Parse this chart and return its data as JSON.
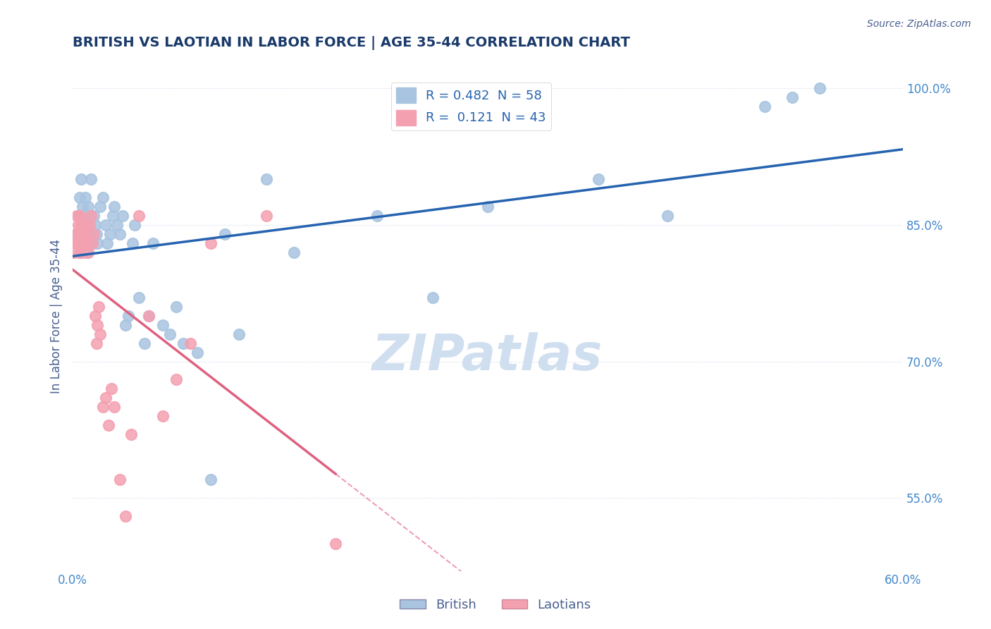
{
  "title": "BRITISH VS LAOTIAN IN LABOR FORCE | AGE 35-44 CORRELATION CHART",
  "source": "Source: ZipAtlas.com",
  "ylabel": "In Labor Force | Age 35-44",
  "xlabel": "",
  "xlim": [
    0.0,
    0.6
  ],
  "ylim": [
    0.47,
    1.03
  ],
  "yticks": [
    0.55,
    0.7,
    0.85,
    1.0
  ],
  "ytick_labels": [
    "55.0%",
    "70.0%",
    "85.0%",
    "100.0%"
  ],
  "xticks": [
    0.0,
    0.6
  ],
  "xtick_labels": [
    "0.0%",
    "60.0%"
  ],
  "british_R": 0.482,
  "british_N": 58,
  "laotian_R": 0.121,
  "laotian_N": 43,
  "british_color": "#a8c4e0",
  "laotian_color": "#f4a0b0",
  "british_line_color": "#2563b0",
  "laotian_line_color": "#e06080",
  "trend_line_color": "#b0b8d0",
  "background_color": "#ffffff",
  "grid_color": "#d0d8e8",
  "title_color": "#1a3a6b",
  "axis_label_color": "#4a6090",
  "tick_color": "#4488cc",
  "watermark_color": "#d0dff0",
  "british_x": [
    0.003,
    0.004,
    0.005,
    0.005,
    0.006,
    0.006,
    0.007,
    0.007,
    0.008,
    0.008,
    0.009,
    0.009,
    0.01,
    0.01,
    0.011,
    0.012,
    0.013,
    0.014,
    0.015,
    0.016,
    0.017,
    0.018,
    0.02,
    0.022,
    0.024,
    0.025,
    0.027,
    0.029,
    0.03,
    0.032,
    0.034,
    0.036,
    0.038,
    0.04,
    0.043,
    0.045,
    0.048,
    0.052,
    0.055,
    0.058,
    0.065,
    0.07,
    0.075,
    0.08,
    0.09,
    0.1,
    0.11,
    0.12,
    0.14,
    0.16,
    0.22,
    0.26,
    0.3,
    0.38,
    0.43,
    0.5,
    0.52,
    0.54
  ],
  "british_y": [
    0.84,
    0.86,
    0.88,
    0.82,
    0.9,
    0.83,
    0.85,
    0.87,
    0.84,
    0.86,
    0.83,
    0.88,
    0.85,
    0.82,
    0.87,
    0.84,
    0.9,
    0.83,
    0.86,
    0.85,
    0.84,
    0.83,
    0.87,
    0.88,
    0.85,
    0.83,
    0.84,
    0.86,
    0.87,
    0.85,
    0.84,
    0.86,
    0.74,
    0.75,
    0.83,
    0.85,
    0.77,
    0.72,
    0.75,
    0.83,
    0.74,
    0.73,
    0.76,
    0.72,
    0.71,
    0.57,
    0.84,
    0.73,
    0.9,
    0.82,
    0.86,
    0.77,
    0.87,
    0.9,
    0.86,
    0.98,
    0.99,
    1.0
  ],
  "laotian_x": [
    0.001,
    0.002,
    0.003,
    0.003,
    0.004,
    0.004,
    0.005,
    0.005,
    0.005,
    0.006,
    0.006,
    0.007,
    0.007,
    0.008,
    0.008,
    0.009,
    0.01,
    0.011,
    0.012,
    0.013,
    0.014,
    0.015,
    0.016,
    0.017,
    0.018,
    0.019,
    0.02,
    0.022,
    0.024,
    0.026,
    0.028,
    0.03,
    0.034,
    0.038,
    0.042,
    0.048,
    0.055,
    0.065,
    0.075,
    0.085,
    0.1,
    0.14,
    0.19
  ],
  "laotian_y": [
    0.82,
    0.84,
    0.83,
    0.86,
    0.85,
    0.83,
    0.84,
    0.82,
    0.86,
    0.83,
    0.85,
    0.84,
    0.82,
    0.85,
    0.83,
    0.84,
    0.83,
    0.82,
    0.85,
    0.86,
    0.83,
    0.84,
    0.75,
    0.72,
    0.74,
    0.76,
    0.73,
    0.65,
    0.66,
    0.63,
    0.67,
    0.65,
    0.57,
    0.53,
    0.62,
    0.86,
    0.75,
    0.64,
    0.68,
    0.72,
    0.83,
    0.86,
    0.5
  ]
}
